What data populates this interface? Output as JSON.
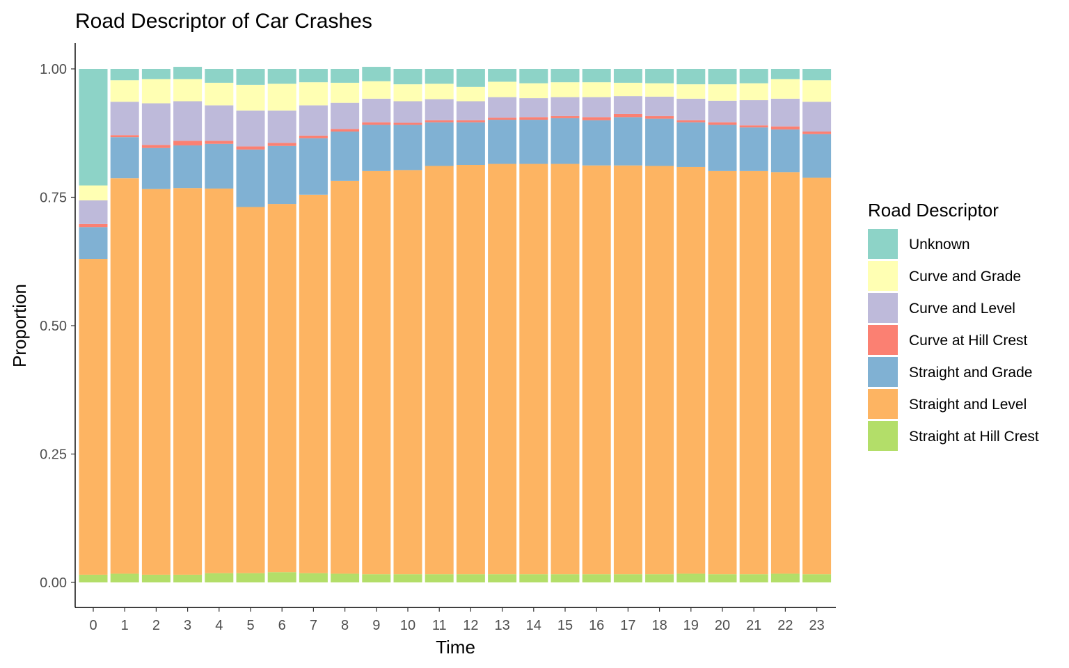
{
  "chart_data": {
    "type": "bar",
    "stacked": true,
    "title": "Road Descriptor of Car Crashes",
    "xlabel": "Time",
    "ylabel": "Proportion",
    "ylim": [
      0,
      1
    ],
    "yticks": [
      "0.00",
      "0.25",
      "0.50",
      "0.75",
      "1.00"
    ],
    "ytick_values": [
      0,
      0.25,
      0.5,
      0.75,
      1.0
    ],
    "grid": false,
    "legend_placement": "right",
    "legend_title": "Road Descriptor",
    "categories": [
      "0",
      "1",
      "2",
      "3",
      "4",
      "5",
      "6",
      "7",
      "8",
      "9",
      "10",
      "11",
      "12",
      "13",
      "14",
      "15",
      "16",
      "17",
      "18",
      "19",
      "20",
      "21",
      "22",
      "23"
    ],
    "series": [
      {
        "name": "Straight at Hill Crest",
        "color": "#b3de69",
        "values": [
          0.015,
          0.017,
          0.015,
          0.015,
          0.018,
          0.018,
          0.02,
          0.018,
          0.017,
          0.016,
          0.016,
          0.016,
          0.016,
          0.016,
          0.016,
          0.016,
          0.016,
          0.016,
          0.016,
          0.017,
          0.016,
          0.016,
          0.017,
          0.016
        ]
      },
      {
        "name": "Straight and Level",
        "color": "#fdb462",
        "values": [
          0.615,
          0.77,
          0.751,
          0.753,
          0.749,
          0.713,
          0.717,
          0.737,
          0.765,
          0.785,
          0.787,
          0.795,
          0.797,
          0.799,
          0.799,
          0.799,
          0.796,
          0.796,
          0.795,
          0.792,
          0.785,
          0.785,
          0.782,
          0.772
        ]
      },
      {
        "name": "Straight and Grade",
        "color": "#80b1d3",
        "values": [
          0.062,
          0.08,
          0.08,
          0.083,
          0.087,
          0.112,
          0.113,
          0.11,
          0.096,
          0.09,
          0.088,
          0.085,
          0.083,
          0.086,
          0.086,
          0.089,
          0.088,
          0.094,
          0.092,
          0.087,
          0.09,
          0.085,
          0.083,
          0.085
        ]
      },
      {
        "name": "Curve at Hill Crest",
        "color": "#fb8072",
        "values": [
          0.006,
          0.004,
          0.006,
          0.009,
          0.006,
          0.006,
          0.006,
          0.005,
          0.005,
          0.005,
          0.004,
          0.004,
          0.004,
          0.004,
          0.005,
          0.004,
          0.006,
          0.006,
          0.005,
          0.004,
          0.005,
          0.004,
          0.006,
          0.005
        ]
      },
      {
        "name": "Curve and Level",
        "color": "#bebada",
        "values": [
          0.046,
          0.065,
          0.081,
          0.077,
          0.069,
          0.07,
          0.063,
          0.059,
          0.051,
          0.046,
          0.042,
          0.041,
          0.037,
          0.04,
          0.037,
          0.037,
          0.039,
          0.035,
          0.038,
          0.042,
          0.042,
          0.049,
          0.054,
          0.058
        ]
      },
      {
        "name": "Curve and Grade",
        "color": "#ffffb3",
        "values": [
          0.029,
          0.042,
          0.047,
          0.043,
          0.044,
          0.05,
          0.052,
          0.045,
          0.039,
          0.034,
          0.033,
          0.03,
          0.028,
          0.03,
          0.029,
          0.029,
          0.029,
          0.026,
          0.026,
          0.028,
          0.032,
          0.033,
          0.038,
          0.042
        ]
      },
      {
        "name": "Unknown",
        "color": "#8dd3c7",
        "values": [
          0.227,
          0.022,
          0.02,
          0.024,
          0.027,
          0.031,
          0.029,
          0.026,
          0.027,
          0.028,
          0.03,
          0.029,
          0.035,
          0.025,
          0.028,
          0.026,
          0.026,
          0.027,
          0.028,
          0.03,
          0.03,
          0.028,
          0.02,
          0.022
        ]
      }
    ],
    "legend_order": [
      "Unknown",
      "Curve and Grade",
      "Curve and Level",
      "Curve at Hill Crest",
      "Straight and Grade",
      "Straight and Level",
      "Straight at Hill Crest"
    ]
  }
}
